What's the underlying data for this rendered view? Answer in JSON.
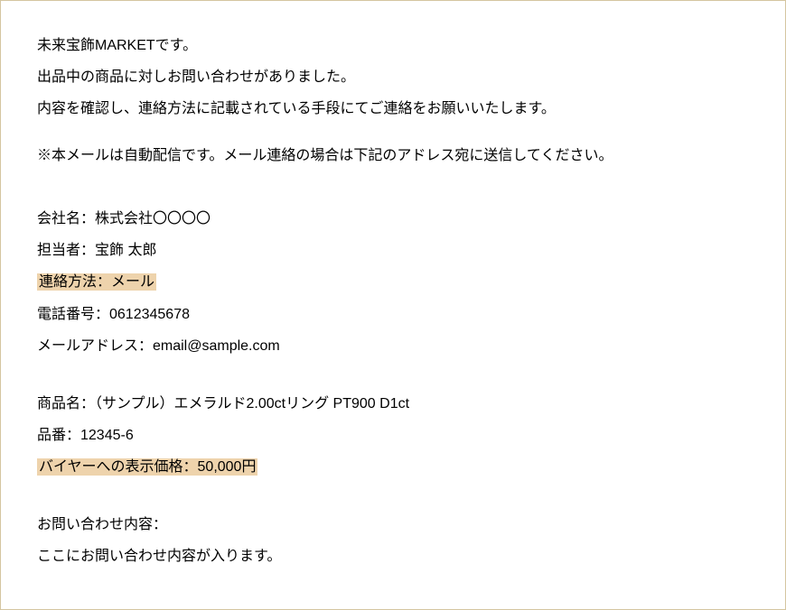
{
  "intro": {
    "line1": "未来宝飾MARKETです。",
    "line2": "出品中の商品に対しお問い合わせがありました。",
    "line3": "内容を確認し、連絡方法に記載されている手段にてご連絡をお願いいたします。",
    "line4": "※本メールは自動配信です。メール連絡の場合は下記のアドレス宛に送信してください。"
  },
  "contact": {
    "company": "会社名：株式会社〇〇〇〇",
    "person": "担当者：宝飾 太郎",
    "method": "連絡方法：メール",
    "phone": "電話番号：0612345678",
    "email": "メールアドレス：email@sample.com"
  },
  "product": {
    "name": "商品名：（サンプル）エメラルド2.00ctリング PT900 D1ct",
    "sku": "品番：12345-6",
    "buyer_price": "バイヤーへの表示価格：50,000円"
  },
  "inquiry": {
    "label": "お問い合わせ内容：",
    "body": "ここにお問い合わせ内容が入ります。"
  },
  "colors": {
    "border": "#d4c5a0",
    "highlight_bg": "#eed3ac",
    "text": "#000000",
    "bg": "#ffffff"
  }
}
